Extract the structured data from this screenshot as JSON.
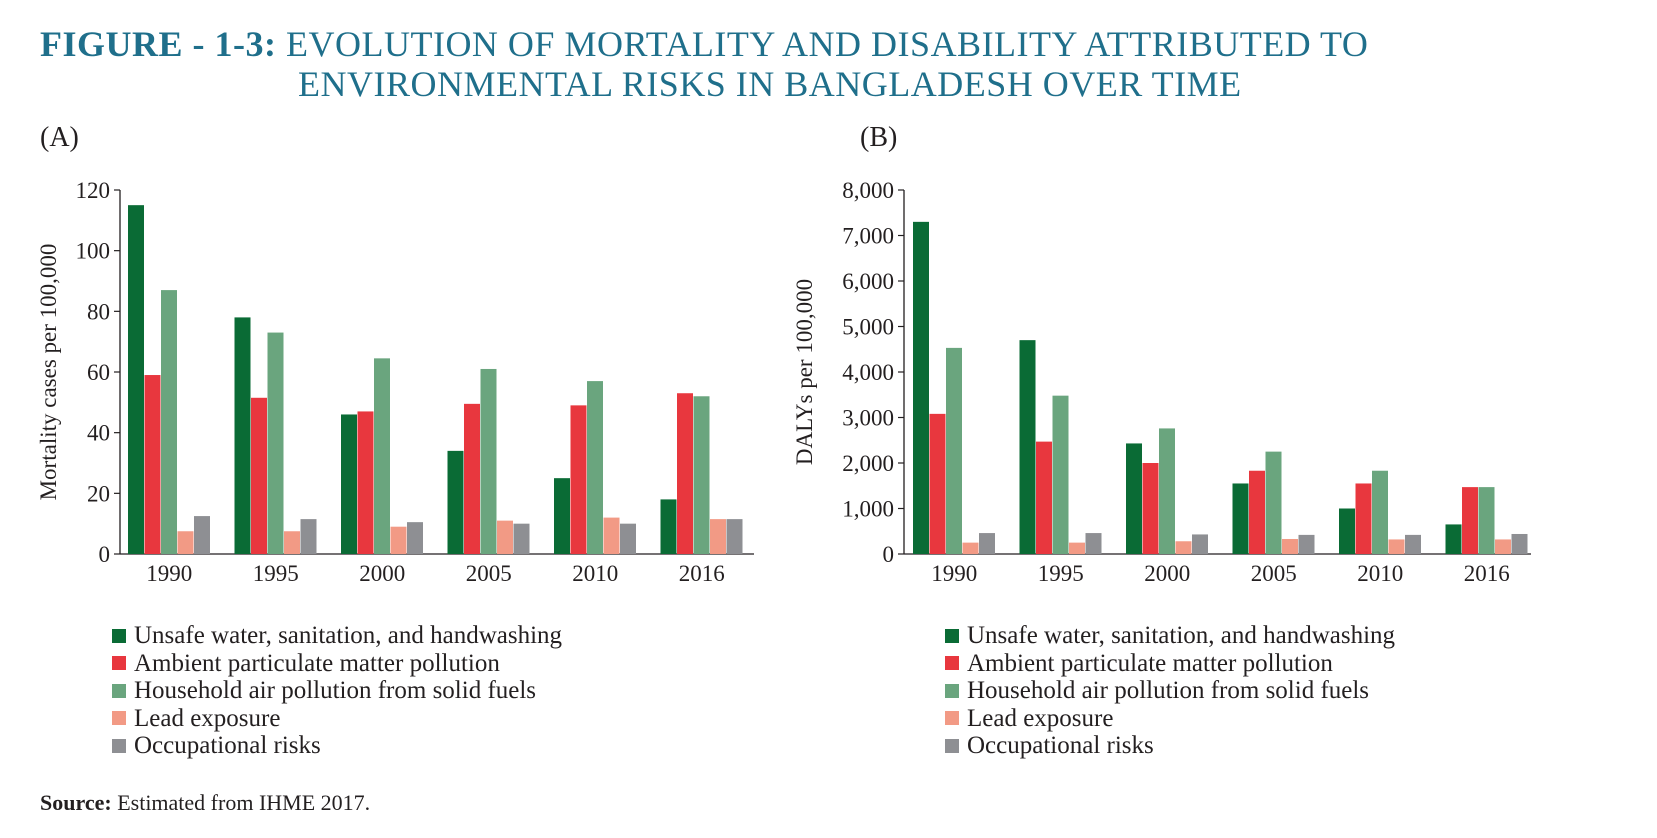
{
  "figure": {
    "label": "FIGURE - 1-3:",
    "title_line1": "EVOLUTION OF MORTALITY AND DISABILITY ATTRIBUTED TO",
    "title_line2": "ENVIRONMENTAL RISKS IN BANGLADESH OVER TIME"
  },
  "source": {
    "label": "Source:",
    "text": "Estimated from IHME 2017."
  },
  "colors": {
    "Unsafe water, sanitation, and handwashing": "#0a6b35",
    "Ambient particulate matter pollution": "#e8373e",
    "Household air pollution from solid fuels": "#6aa57e",
    "Lead exposure": "#f29a85",
    "Occupational risks": "#8e8f93"
  },
  "chart_data": [
    {
      "panel": "(A)",
      "type": "bar",
      "ylabel": "Mortality cases per 100,000",
      "ylim": [
        0,
        120
      ],
      "yticks": [
        0,
        20,
        40,
        60,
        80,
        100,
        120
      ],
      "ytick_labels": [
        "0",
        "20",
        "40",
        "60",
        "80",
        "100",
        "120"
      ],
      "categories": [
        "1990",
        "1995",
        "2000",
        "2005",
        "2010",
        "2016"
      ],
      "series": [
        {
          "name": "Unsafe water, sanitation, and handwashing",
          "values": [
            115,
            78,
            46,
            34,
            25,
            18
          ]
        },
        {
          "name": "Ambient particulate matter pollution",
          "values": [
            59,
            51.5,
            47,
            49.5,
            49,
            53
          ]
        },
        {
          "name": "Household air pollution from solid fuels",
          "values": [
            87,
            73,
            64.5,
            61,
            57,
            52
          ]
        },
        {
          "name": "Lead exposure",
          "values": [
            7.5,
            7.5,
            9,
            11,
            12,
            11.5
          ]
        },
        {
          "name": "Occupational risks",
          "values": [
            12.5,
            11.5,
            10.5,
            10,
            10,
            11.5
          ]
        }
      ]
    },
    {
      "panel": "(B)",
      "type": "bar",
      "ylabel": "DALYs per 100,000",
      "ylim": [
        0,
        8000
      ],
      "yticks": [
        0,
        1000,
        2000,
        3000,
        4000,
        5000,
        6000,
        7000,
        8000
      ],
      "ytick_labels": [
        "0",
        "1,000",
        "2,000",
        "3,000",
        "4,000",
        "5,000",
        "6,000",
        "7,000",
        "8,000"
      ],
      "categories": [
        "1990",
        "1995",
        "2000",
        "2005",
        "2010",
        "2016"
      ],
      "series": [
        {
          "name": "Unsafe water, sanitation, and handwashing",
          "values": [
            7300,
            4700,
            2430,
            1550,
            1000,
            650
          ]
        },
        {
          "name": "Ambient particulate matter pollution",
          "values": [
            3080,
            2470,
            2000,
            1830,
            1550,
            1470
          ]
        },
        {
          "name": "Household air pollution from solid fuels",
          "values": [
            4530,
            3480,
            2760,
            2250,
            1830,
            1470
          ]
        },
        {
          "name": "Lead exposure",
          "values": [
            250,
            250,
            280,
            330,
            320,
            320
          ]
        },
        {
          "name": "Occupational risks",
          "values": [
            460,
            460,
            430,
            420,
            420,
            440
          ]
        }
      ]
    }
  ]
}
